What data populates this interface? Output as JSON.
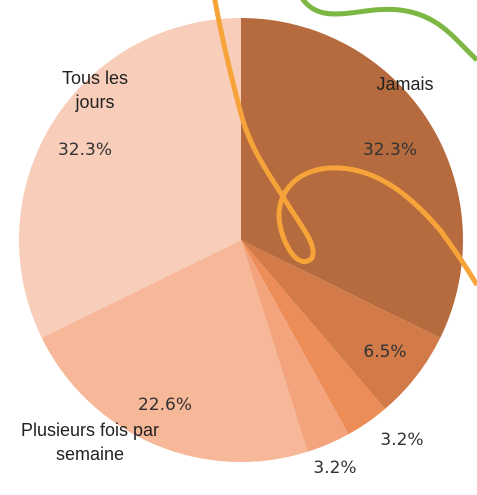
{
  "chart_data": {
    "type": "pie",
    "categories": [
      "Jamais",
      null,
      null,
      null,
      "Plusieurs fois par semaine",
      "Tous les jours"
    ],
    "values": [
      32.3,
      6.5,
      3.2,
      3.2,
      22.6,
      32.3
    ],
    "value_labels": [
      "32.3%",
      "6.5%",
      "3.2%",
      "3.2%",
      "22.6%",
      "32.3%"
    ],
    "colors": [
      "#b56b3e",
      "#d27b49",
      "#ec8d57",
      "#f3a47c",
      "#f6b899",
      "#f8cdb9"
    ]
  }
}
